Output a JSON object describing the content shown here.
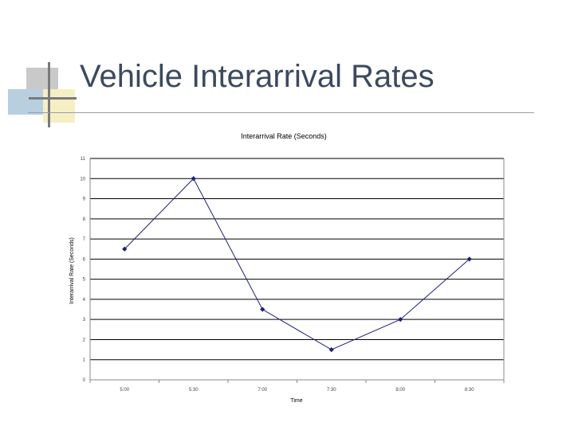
{
  "slide": {
    "title": "Vehicle Interarrival Rates",
    "colors": {
      "title_text": "#3c4a5e",
      "logo_gray": "#c9c9c9",
      "logo_blue": "#b8cfe0",
      "logo_yellow": "#f6efc4",
      "logo_bar": "#7a7a7a"
    }
  },
  "chart_data": {
    "type": "line",
    "title": "Interarrival Rate (Seconds)",
    "xlabel": "Time",
    "ylabel": "Interarrival Rate (Seconds)",
    "categories": [
      "5:00",
      "5:30",
      "7:00",
      "7:30",
      "8:00",
      "8:30"
    ],
    "y_ticks": [
      "0",
      "1",
      "2",
      "3",
      "4",
      "5",
      "6",
      "7",
      "8",
      "9",
      "10",
      "11"
    ],
    "ylim": [
      0,
      11
    ],
    "grid": true,
    "legend": "none",
    "series": [
      {
        "values": [
          6.5,
          10,
          3.5,
          1.5,
          3,
          6
        ],
        "color": "#1f1f7a"
      }
    ]
  }
}
